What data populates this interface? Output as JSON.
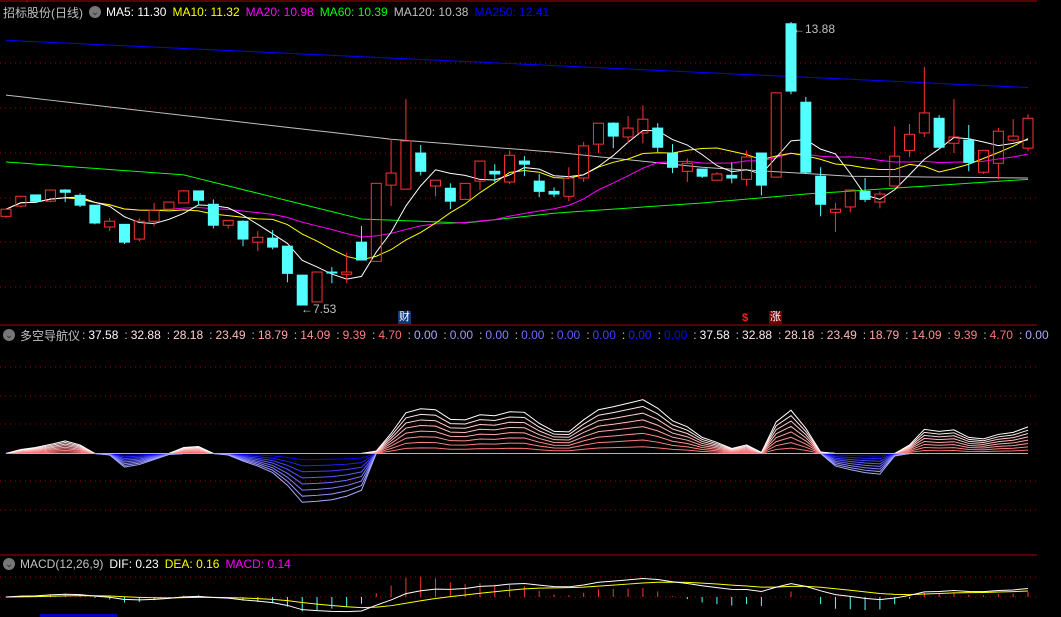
{
  "main": {
    "title": "招标股份(日线)",
    "ma_labels": [
      {
        "text": "MA5: 11.30",
        "color": "#ffffff"
      },
      {
        "text": "MA10: 11.32",
        "color": "#ffff00"
      },
      {
        "text": "MA20: 10.98",
        "color": "#ff00ff"
      },
      {
        "text": "MA60: 10.39",
        "color": "#00ff00"
      },
      {
        "text": "MA120: 10.38",
        "color": "#c0c0c0"
      },
      {
        "text": "MA250: 12.41",
        "color": "#0000ff"
      }
    ],
    "high_label": "13.88",
    "low_label": "7.53",
    "markers": {
      "finance": "财",
      "dividend": "$",
      "rise": "涨"
    }
  },
  "indicator": {
    "title": "多空导航仪",
    "values": [
      {
        "text": "37.58",
        "color": "#ffffff"
      },
      {
        "text": "32.88",
        "color": "#ffe8e8"
      },
      {
        "text": "28.18",
        "color": "#ffd0d0"
      },
      {
        "text": "23.49",
        "color": "#ffbaba"
      },
      {
        "text": "18.79",
        "color": "#ffa4a4"
      },
      {
        "text": "14.09",
        "color": "#ff9090"
      },
      {
        "text": "9.39",
        "color": "#ff8080"
      },
      {
        "text": "4.70",
        "color": "#ff7070"
      },
      {
        "text": "0.00",
        "color": "#aaaaff"
      },
      {
        "text": "0.00",
        "color": "#9999ff"
      },
      {
        "text": "0.00",
        "color": "#8080ff"
      },
      {
        "text": "0.00",
        "color": "#6f6fff"
      },
      {
        "text": "0.00",
        "color": "#5a5aff"
      },
      {
        "text": "0.00",
        "color": "#4040ff"
      },
      {
        "text": "0.00",
        "color": "#2020ff"
      },
      {
        "text": "0.00",
        "color": "#0000ff"
      },
      {
        "text": "37.58",
        "color": "#ffffff"
      },
      {
        "text": "32.88",
        "color": "#ffe8e8"
      },
      {
        "text": "28.18",
        "color": "#ffd0d0"
      },
      {
        "text": "23.49",
        "color": "#ffbaba"
      },
      {
        "text": "18.79",
        "color": "#ffa4a4"
      },
      {
        "text": "14.09",
        "color": "#ff9090"
      },
      {
        "text": "9.39",
        "color": "#ff8080"
      },
      {
        "text": "4.70",
        "color": "#ff7070"
      },
      {
        "text": "0.00",
        "color": "#aaaaff"
      }
    ]
  },
  "macd": {
    "title": "MACD(12,26,9)",
    "dif": "DIF: 0.23",
    "dea": "DEA: 0.16",
    "macd": "MACD: 0.14"
  },
  "colors": {
    "up": "#ff3232",
    "down": "#54ffff",
    "grid": "#a00000",
    "border": "#b00000"
  },
  "chart_data": {
    "type": "candlestick",
    "ohlc": [
      [
        9.52,
        9.68,
        9.68,
        9.48
      ],
      [
        9.75,
        9.97,
        9.97,
        9.72
      ],
      [
        10.0,
        9.86,
        10.0,
        9.82
      ],
      [
        9.86,
        10.11,
        10.11,
        9.84
      ],
      [
        10.11,
        10.06,
        10.13,
        9.84
      ],
      [
        9.99,
        9.77,
        10.04,
        9.73
      ],
      [
        9.77,
        9.37,
        9.77,
        9.34
      ],
      [
        9.28,
        9.41,
        9.48,
        9.19
      ],
      [
        9.34,
        8.94,
        9.34,
        8.9
      ],
      [
        9.01,
        9.41,
        9.48,
        8.96
      ],
      [
        9.41,
        9.66,
        9.82,
        9.3
      ],
      [
        9.68,
        9.84,
        9.84,
        9.68
      ],
      [
        9.82,
        10.09,
        10.11,
        9.82
      ],
      [
        10.09,
        9.88,
        10.09,
        9.77
      ],
      [
        9.79,
        9.32,
        9.9,
        9.25
      ],
      [
        9.32,
        9.43,
        9.43,
        9.25
      ],
      [
        9.41,
        9.01,
        9.43,
        8.85
      ],
      [
        8.94,
        9.05,
        9.19,
        8.74
      ],
      [
        9.03,
        8.83,
        9.21,
        8.78
      ],
      [
        8.85,
        8.24,
        8.85,
        8.04
      ],
      [
        8.2,
        7.53,
        8.2,
        7.53
      ],
      [
        7.6,
        8.27,
        8.27,
        7.6
      ],
      [
        8.27,
        8.25,
        8.38,
        8.02
      ],
      [
        8.22,
        8.27,
        8.7,
        8.02
      ],
      [
        8.94,
        8.54,
        9.3,
        8.54
      ],
      [
        8.51,
        10.26,
        10.26,
        8.51
      ],
      [
        10.22,
        10.49,
        11.25,
        9.75
      ],
      [
        10.13,
        11.21,
        12.15,
        10.13
      ],
      [
        10.94,
        10.53,
        11.12,
        10.44
      ],
      [
        10.2,
        10.33,
        10.33,
        9.97
      ],
      [
        10.15,
        9.86,
        10.26,
        9.68
      ],
      [
        9.9,
        10.26,
        10.26,
        9.9
      ],
      [
        10.31,
        10.76,
        10.76,
        10.11
      ],
      [
        10.53,
        10.47,
        10.69,
        10.29
      ],
      [
        10.29,
        10.89,
        11.0,
        10.24
      ],
      [
        10.76,
        10.69,
        10.87,
        10.42
      ],
      [
        10.31,
        10.08,
        10.47,
        9.95
      ],
      [
        10.08,
        10.02,
        10.17,
        9.95
      ],
      [
        9.97,
        10.38,
        10.62,
        9.86
      ],
      [
        10.38,
        11.1,
        11.19,
        10.29
      ],
      [
        11.14,
        11.61,
        11.61,
        10.94
      ],
      [
        11.61,
        11.32,
        11.63,
        11.05
      ],
      [
        11.3,
        11.5,
        11.77,
        11.16
      ],
      [
        11.39,
        11.7,
        12.01,
        11.16
      ],
      [
        11.5,
        11.07,
        11.61,
        10.96
      ],
      [
        10.94,
        10.62,
        11.14,
        10.49
      ],
      [
        10.53,
        10.71,
        10.82,
        10.29
      ],
      [
        10.58,
        10.42,
        10.58,
        10.38
      ],
      [
        10.33,
        10.47,
        10.51,
        10.33
      ],
      [
        10.44,
        10.38,
        10.73,
        10.26
      ],
      [
        10.35,
        10.85,
        11.0,
        10.2
      ],
      [
        10.94,
        10.22,
        10.94,
        9.99
      ],
      [
        10.4,
        12.29,
        12.29,
        10.4
      ],
      [
        13.84,
        12.33,
        13.88,
        12.26
      ],
      [
        12.08,
        10.51,
        12.2,
        10.47
      ],
      [
        10.42,
        9.79,
        10.62,
        9.52
      ],
      [
        9.61,
        9.68,
        9.82,
        9.17
      ],
      [
        9.73,
        10.11,
        10.11,
        9.61
      ],
      [
        10.08,
        9.9,
        10.38,
        9.84
      ],
      [
        9.84,
        10.02,
        10.08,
        9.7
      ],
      [
        10.2,
        10.87,
        11.54,
        10.2
      ],
      [
        11.0,
        11.36,
        11.59,
        10.85
      ],
      [
        11.39,
        11.84,
        12.87,
        11.3
      ],
      [
        11.72,
        11.07,
        11.79,
        11.07
      ],
      [
        11.16,
        11.3,
        12.15,
        10.94
      ],
      [
        11.23,
        10.73,
        11.57,
        10.53
      ],
      [
        10.51,
        11.0,
        11.0,
        10.47
      ],
      [
        10.71,
        11.43,
        11.5,
        10.35
      ],
      [
        11.23,
        11.32,
        11.7,
        11.19
      ],
      [
        11.05,
        11.72,
        11.81,
        10.98
      ]
    ],
    "price_range": [
      7.53,
      13.88
    ],
    "ma_anchor_lines": {
      "MA60": [
        [
          0,
          10.74
        ],
        [
          12,
          10.45
        ],
        [
          24,
          9.46
        ],
        [
          31,
          9.37
        ],
        [
          37,
          9.59
        ],
        [
          47,
          9.82
        ],
        [
          54,
          10.02
        ],
        [
          69,
          10.35
        ]
      ],
      "MA120": [
        [
          0,
          12.24
        ],
        [
          26,
          11.25
        ],
        [
          37,
          10.96
        ],
        [
          47,
          10.62
        ],
        [
          57,
          10.42
        ],
        [
          69,
          10.38
        ]
      ],
      "MA250": [
        [
          0,
          13.47
        ],
        [
          69,
          12.41
        ]
      ]
    },
    "indicator_outer": [
      0,
      5.7,
      8.5,
      12.8,
      17.7,
      12.1,
      0,
      -2.1,
      -19.1,
      -15.6,
      -8.5,
      -1.4,
      8.5,
      9.9,
      0,
      -2.1,
      -10.6,
      -17.7,
      -26.9,
      -44.7,
      -68.8,
      -67.4,
      -65.2,
      -60.3,
      -51.8,
      3.5,
      28.4,
      57.4,
      63.1,
      61.7,
      48.2,
      47.5,
      54.6,
      53.2,
      58.8,
      58.1,
      42.5,
      31.2,
      30.5,
      47.5,
      61.7,
      65.9,
      70.9,
      75.9,
      63.8,
      46.1,
      37.6,
      22.7,
      15.6,
      7.1,
      12.1,
      1.4,
      44.7,
      61.0,
      35.5,
      2.1,
      -17.7,
      -22.7,
      -26.9,
      -29.1,
      -3.5,
      12.1,
      34.0,
      31.2,
      33.3,
      22.7,
      20.6,
      26.9,
      29.8,
      37.58
    ],
    "indicator_levels": 8,
    "grid": true
  }
}
